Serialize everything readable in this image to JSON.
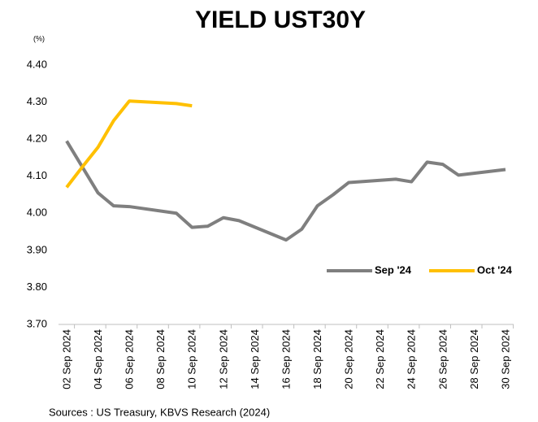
{
  "chart_data": {
    "type": "line",
    "title": "YIELD UST30Y",
    "y_unit": "(%)",
    "source": "Sources : US Treasury, KBVS Research (2024)",
    "xlim": [
      2,
      30
    ],
    "xticks": [
      {
        "value": 2,
        "label": "02 Sep 2024"
      },
      {
        "value": 4,
        "label": "04 Sep 2024"
      },
      {
        "value": 6,
        "label": "06 Sep 2024"
      },
      {
        "value": 8,
        "label": "08 Sep 2024"
      },
      {
        "value": 10,
        "label": "10 Sep 2024"
      },
      {
        "value": 12,
        "label": "12 Sep 2024"
      },
      {
        "value": 14,
        "label": "14 Sep 2024"
      },
      {
        "value": 16,
        "label": "16 Sep 2024"
      },
      {
        "value": 18,
        "label": "18 Sep 2024"
      },
      {
        "value": 20,
        "label": "20 Sep 2024"
      },
      {
        "value": 22,
        "label": "22 Sep 2024"
      },
      {
        "value": 24,
        "label": "24 Sep 2024"
      },
      {
        "value": 26,
        "label": "26 Sep 2024"
      },
      {
        "value": 28,
        "label": "28 Sep 2024"
      },
      {
        "value": 30,
        "label": "30 Sep 2024"
      }
    ],
    "ylim": [
      3.7,
      4.4
    ],
    "yticks": [
      {
        "value": 3.7,
        "label": "3.70"
      },
      {
        "value": 3.8,
        "label": "3.80"
      },
      {
        "value": 3.9,
        "label": "3.90"
      },
      {
        "value": 4.0,
        "label": "4.00"
      },
      {
        "value": 4.1,
        "label": "4.10"
      },
      {
        "value": 4.2,
        "label": "4.20"
      },
      {
        "value": 4.3,
        "label": "4.30"
      },
      {
        "value": 4.4,
        "label": "4.40"
      }
    ],
    "grid": false,
    "legend": "right",
    "series": [
      {
        "name": "Sep '24",
        "color": "#7f7f7f",
        "x": [
          2,
          3,
          4,
          5,
          6,
          9,
          10,
          11,
          12,
          13,
          16,
          17,
          18,
          19,
          20,
          23,
          24,
          25,
          26,
          27,
          30
        ],
        "values": [
          4.195,
          4.125,
          4.055,
          4.02,
          4.018,
          4.0,
          3.962,
          3.965,
          3.988,
          3.98,
          3.928,
          3.957,
          4.02,
          4.05,
          4.083,
          4.092,
          4.085,
          4.138,
          4.132,
          4.103,
          4.118
        ]
      },
      {
        "name": "Oct '24",
        "color": "#ffc000",
        "x": [
          2,
          3,
          4,
          5,
          6,
          9,
          10
        ],
        "values": [
          4.07,
          4.125,
          4.178,
          4.25,
          4.303,
          4.296,
          4.29
        ]
      }
    ]
  }
}
